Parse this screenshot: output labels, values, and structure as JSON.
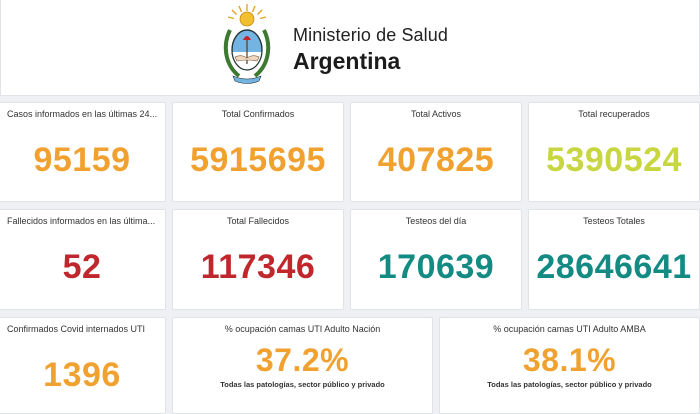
{
  "header": {
    "ministry": "Ministerio de Salud",
    "country": "Argentina"
  },
  "colors": {
    "orange": "#f1a12f",
    "lime": "#c8d642",
    "red": "#c0272d",
    "teal": "#138a82"
  },
  "cards": [
    {
      "title": "Casos informados en las últimas 24...",
      "value": "95159"
    },
    {
      "title": "Total Confirmados",
      "value": "5915695"
    },
    {
      "title": "Total Activos",
      "value": "407825"
    },
    {
      "title": "Total recuperados",
      "value": "5390524"
    },
    {
      "title": "Fallecidos informados en las última...",
      "value": "52"
    },
    {
      "title": "Total Fallecidos",
      "value": "117346"
    },
    {
      "title": "Testeos del día",
      "value": "170639"
    },
    {
      "title": "Testeos Totales",
      "value": "28646641"
    },
    {
      "title": "Confirmados Covid internados UTI",
      "value": "1396"
    },
    {
      "title": "% ocupación camas UTI Adulto Nación",
      "value": "37.2%",
      "note": "Todas las patologías, sector público y privado"
    },
    {
      "title": "% ocupación camas UTI Adulto AMBA",
      "value": "38.1%",
      "note": "Todas las patologías, sector público y privado"
    }
  ]
}
